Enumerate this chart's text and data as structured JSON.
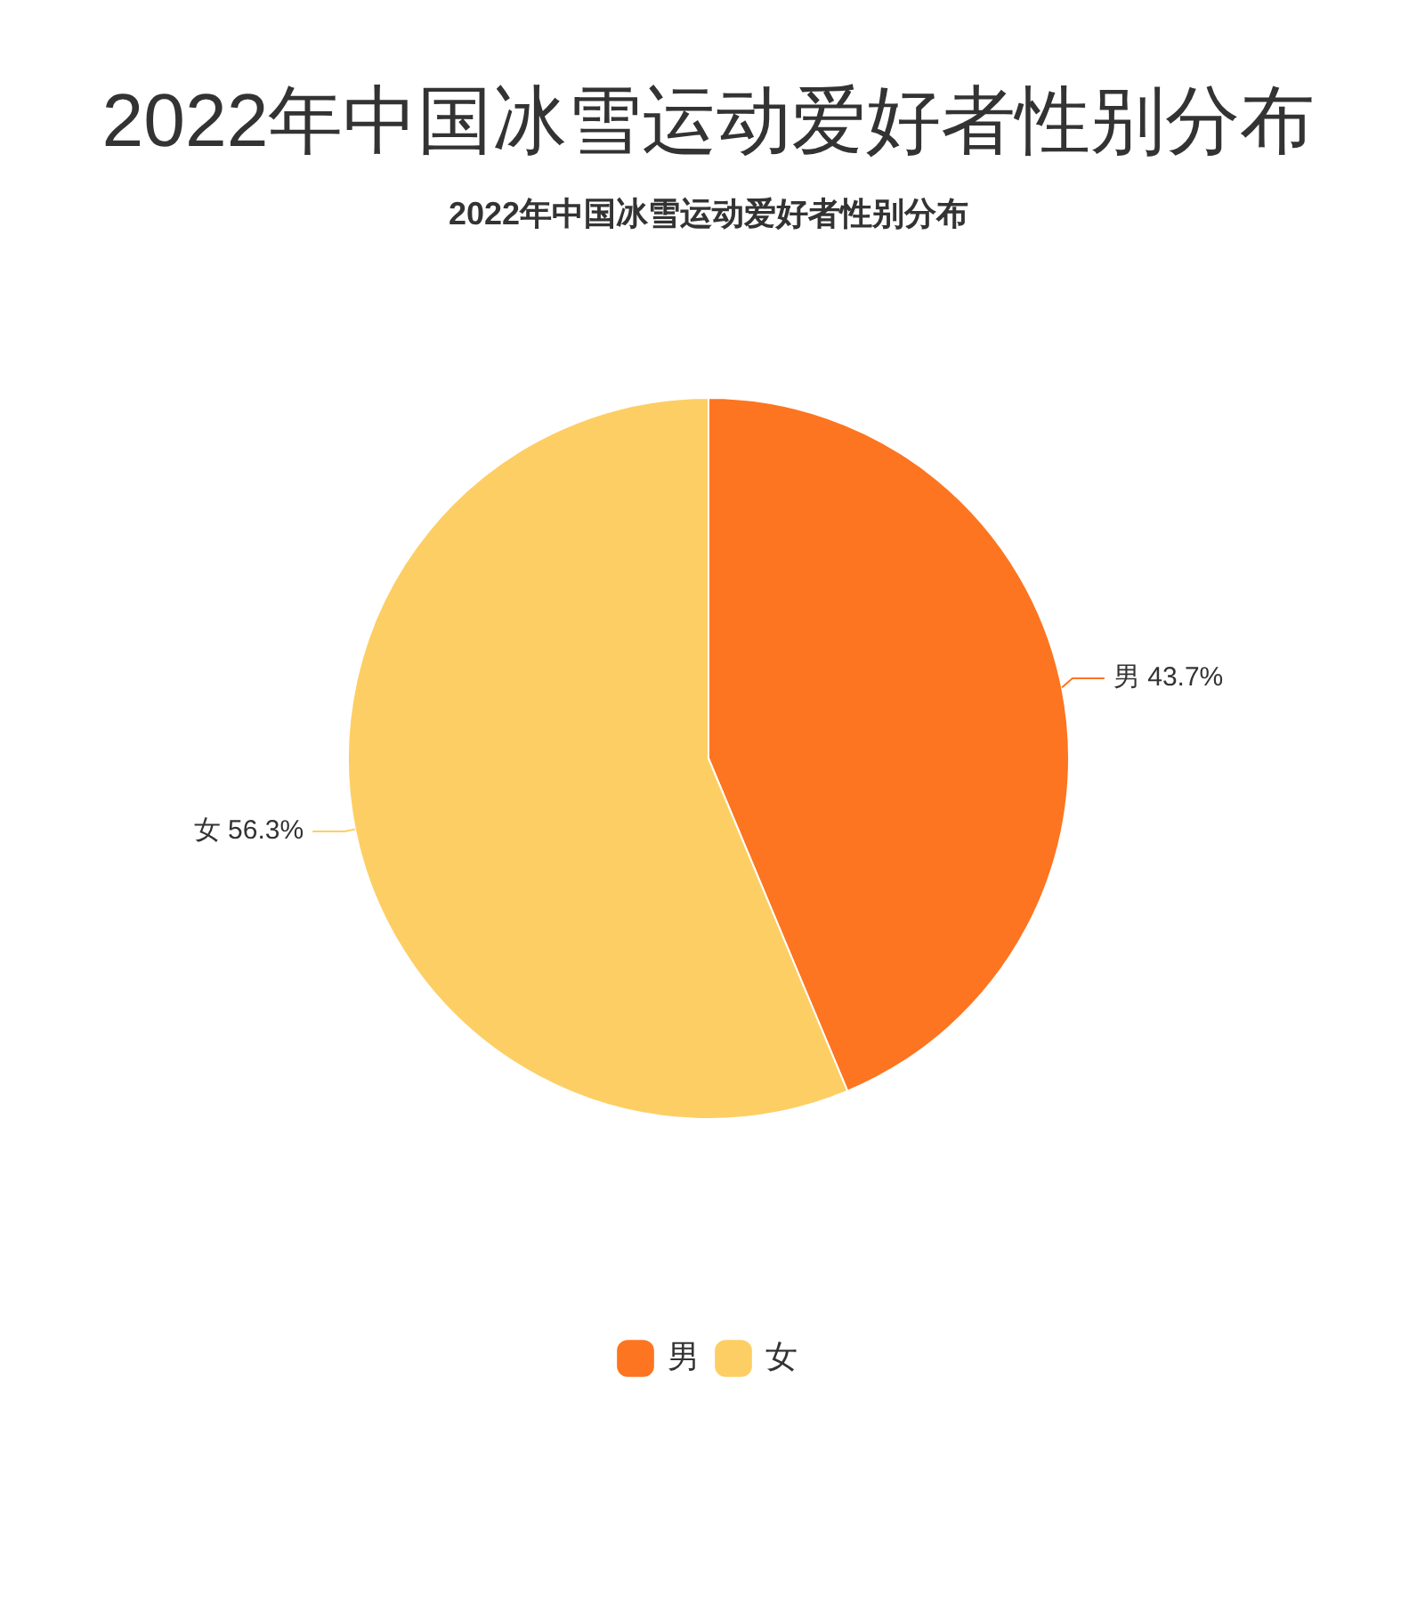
{
  "chart_data": {
    "type": "pie",
    "title": "2022年中国冰雪运动爱好者性别分布",
    "subtitle": "2022年中国冰雪运动爱好者性别分布",
    "categories": [
      "男",
      "女"
    ],
    "values": [
      43.7,
      56.3
    ],
    "colors": [
      "#fd7520",
      "#fdce63"
    ],
    "value_labels": [
      "男 43.7%",
      "女 56.3%"
    ],
    "legend": "bottom"
  }
}
